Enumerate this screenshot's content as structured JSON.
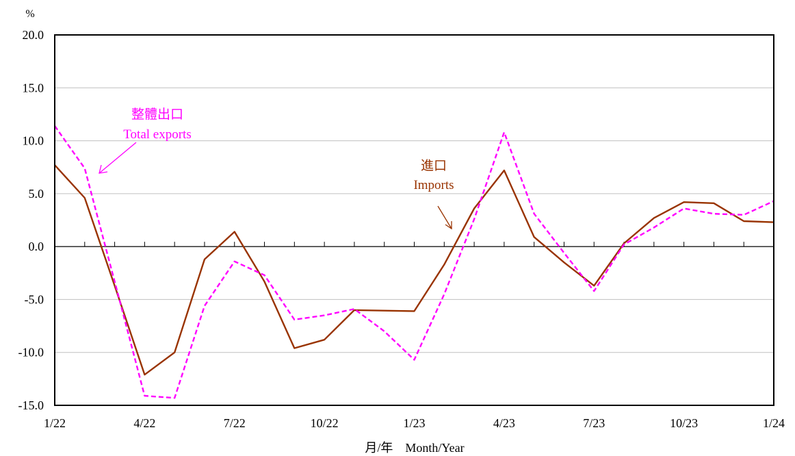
{
  "chart_data": {
    "type": "line",
    "ylabel": "%",
    "xlabel": "月/年　Month/Year",
    "ylim": [
      -15,
      20
    ],
    "y_ticks": [
      20,
      15,
      10,
      5,
      0,
      -5,
      -10,
      -15
    ],
    "y_tick_labels": [
      "20.0",
      "15.0",
      "10.0",
      "5.0",
      "0.0",
      "-5.0",
      "-10.0",
      "-15.0"
    ],
    "x_months": [
      "1/22",
      "2/22",
      "3/22",
      "4/22",
      "5/22",
      "6/22",
      "7/22",
      "8/22",
      "9/22",
      "10/22",
      "11/22",
      "12/22",
      "1/23",
      "2/23",
      "3/23",
      "4/23",
      "5/23",
      "6/23",
      "7/23",
      "8/23",
      "9/23",
      "10/23",
      "11/23",
      "12/23",
      "1/24"
    ],
    "x_tick_labels": [
      "1/22",
      "4/22",
      "7/22",
      "10/22",
      "1/23",
      "4/23",
      "7/23",
      "10/23",
      "1/24"
    ],
    "grid": true,
    "series": [
      {
        "key": "exports",
        "label_zh": "整體出口",
        "label_en": "Total exports",
        "color": "#ff00ff",
        "style": "dashed",
        "values": [
          11.4,
          7.4,
          -3.3,
          -14.1,
          -14.3,
          -5.6,
          -1.4,
          -2.7,
          -6.9,
          -6.5,
          -5.9,
          -8.0,
          -10.7,
          -4.5,
          2.6,
          10.8,
          3.1,
          -0.6,
          -4.2,
          0.2,
          1.8,
          3.6,
          3.1,
          3.0,
          4.3
        ]
      },
      {
        "key": "imports",
        "label_zh": "進口",
        "label_en": "Imports",
        "color": "#993300",
        "style": "solid",
        "values": [
          7.7,
          4.6,
          -3.7,
          -12.1,
          -10.0,
          -1.2,
          1.4,
          -3.3,
          -9.6,
          -8.8,
          -6.0,
          -6.05,
          -6.1,
          -1.7,
          3.6,
          7.2,
          0.9,
          -1.5,
          -3.7,
          0.3,
          2.7,
          4.2,
          4.1,
          2.4,
          2.3
        ]
      }
    ]
  }
}
